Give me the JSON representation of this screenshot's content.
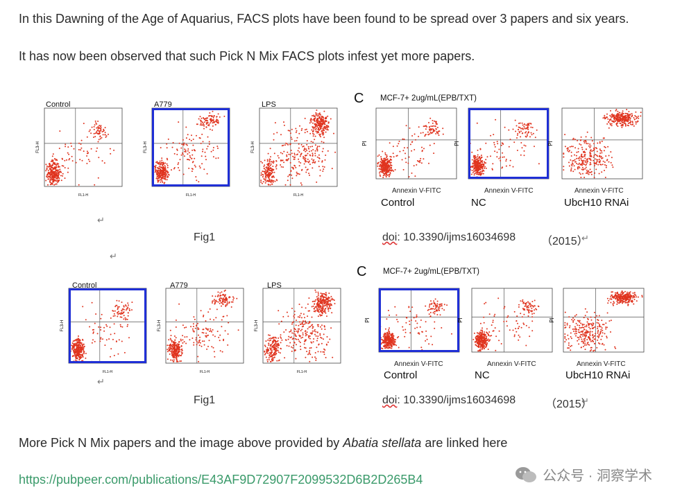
{
  "paragraphs": {
    "intro": "In this Dawning of the Age of Aquarius, FACS plots have been found to be spread over 3 papers and six years.",
    "observed": "It has now been observed that such Pick N Mix FACS plots infest yet more papers.",
    "more_prefix": "More Pick N Mix papers and the image above provided by ",
    "more_author": "Abatia stellata",
    "more_suffix": " are linked here"
  },
  "link": "https://pubpeer.com/publications/E43AF9D72907F2099532D6B2D265B4",
  "figures": {
    "left_top": {
      "labels": [
        "Control",
        "A779",
        "LPS"
      ],
      "caption": "Fig1"
    },
    "left_bottom": {
      "labels": [
        "Control",
        "A779",
        "LPS"
      ],
      "caption": "Fig1"
    },
    "right_top": {
      "letter": "C",
      "condition": "MCF-7+ 2ug/mL(EPB/TXT)",
      "xlabel": "Annexin V-FITC",
      "ylabel": "PI",
      "samples": [
        "Control",
        "NC",
        "UbcH10 RNAi"
      ],
      "doi_prefix": "doi",
      "doi_rest": ": 10.3390/ijms16034698",
      "year": "（2015）"
    },
    "right_bottom": {
      "letter": "C",
      "condition": "MCF-7+ 2ug/mL(EPB/TXT)",
      "xlabel": "Annexin V-FITC",
      "ylabel": "PI",
      "samples": [
        "Control",
        "NC",
        "UbcH10 RNAi"
      ],
      "doi_prefix": "doi",
      "doi_rest": ": 10.3390/ijms16034698",
      "year": "（2015）"
    }
  },
  "left_axis": {
    "ylabel": "FL3-H",
    "xlabel": "FL1-H"
  },
  "watermark": "公众号 · 洞察学术",
  "return_mark": "↵",
  "colors": {
    "dots": "#e0341f",
    "highlight": "#1f2fd6",
    "link": "#3a9a6a"
  }
}
